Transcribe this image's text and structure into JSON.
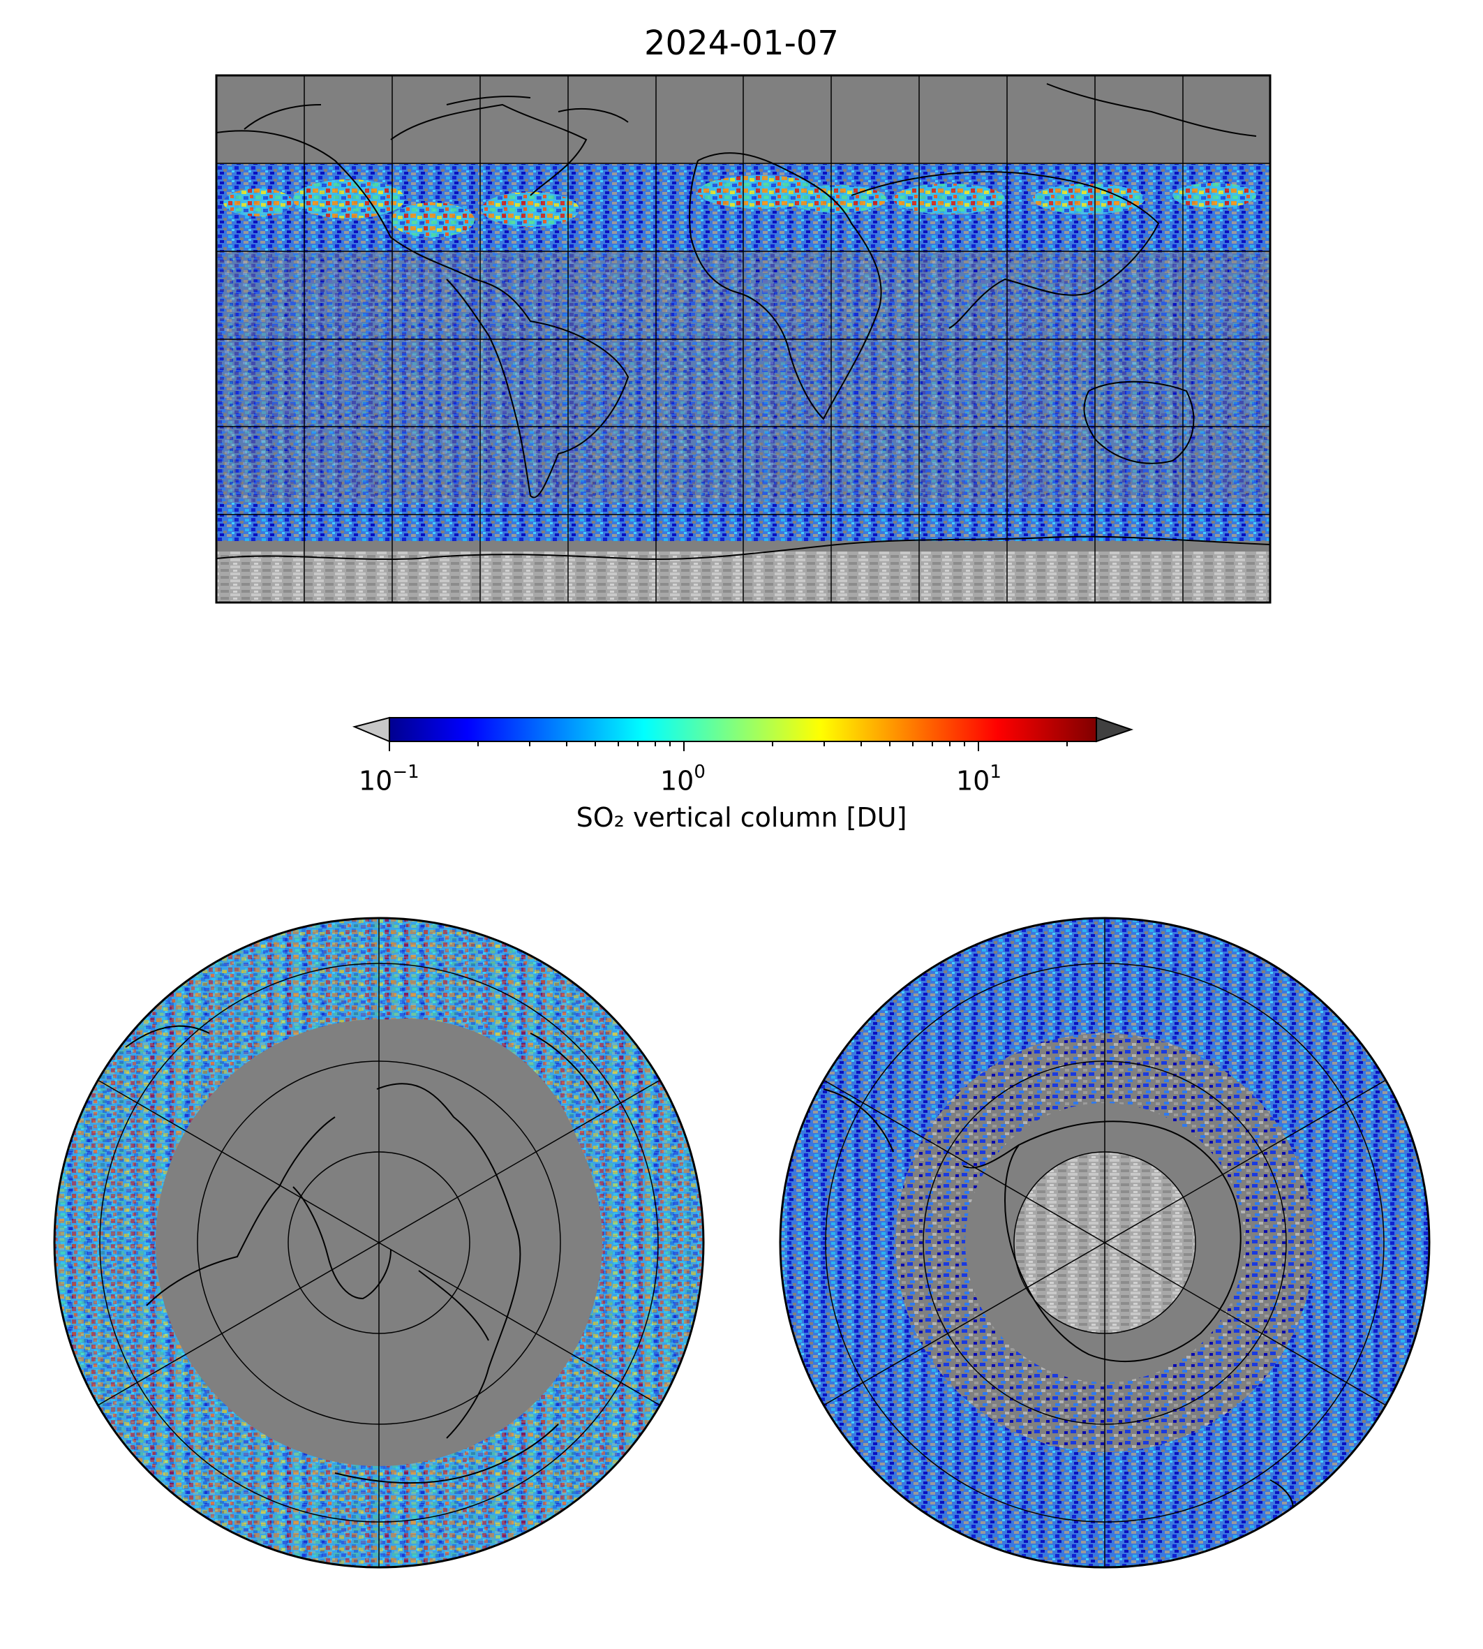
{
  "figure": {
    "title": "2024-01-07"
  },
  "colorbar": {
    "label": "SO₂ vertical column [DU]",
    "scale": "log",
    "range": [
      0.1,
      25
    ],
    "extend": "both",
    "under_color": "#c8c8c8",
    "over_color": "#404040",
    "colormap": "jet",
    "ticks": [
      {
        "base": "10",
        "exp": "−1"
      },
      {
        "base": "10",
        "exp": "0"
      },
      {
        "base": "10",
        "exp": "1"
      }
    ]
  },
  "maps": {
    "global": {
      "projection": "plate-carree",
      "gridlines": true,
      "coastlines": true
    },
    "north_polar": {
      "projection": "north-polar-stereographic",
      "gridlines": true,
      "coastlines": true
    },
    "south_polar": {
      "projection": "south-polar-stereographic",
      "gridlines": true,
      "coastlines": true
    }
  },
  "colors": {
    "no_data": "#808080",
    "below_range": "#c0c0c0"
  }
}
